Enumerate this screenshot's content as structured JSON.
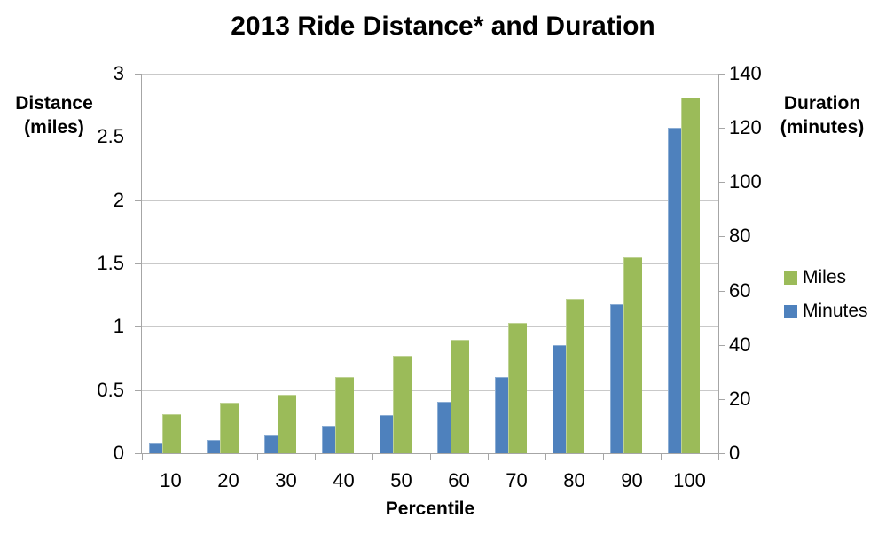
{
  "title": "2013 Ride Distance* and Duration",
  "colors": {
    "miles_green": "#9BBB59",
    "minutes_blue": "#4E81BD",
    "gridline": "#C9C9C9",
    "axis_line": "#A6A6A6",
    "text": "#000000",
    "background": "#FFFFFF"
  },
  "chart_data": {
    "type": "bar",
    "title": "2013 Ride Distance* and Duration",
    "xlabel": "Percentile",
    "grid": true,
    "legend_position": "right",
    "categories": [
      "10",
      "20",
      "30",
      "40",
      "50",
      "60",
      "70",
      "80",
      "90",
      "100"
    ],
    "series": [
      {
        "name": "Miles",
        "axis": "left",
        "color": "#9BBB59",
        "values": [
          0.31,
          0.4,
          0.46,
          0.6,
          0.77,
          0.9,
          1.03,
          1.22,
          1.55,
          2.81
        ]
      },
      {
        "name": "Minutes",
        "axis": "right",
        "color": "#4E81BD",
        "values": [
          4,
          5,
          7,
          10,
          14,
          19,
          28,
          40,
          55,
          120
        ]
      }
    ],
    "left_axis": {
      "title_lines": [
        "Distance",
        "(miles)"
      ],
      "min": 0,
      "max": 3,
      "tick_step": 0.5,
      "tick_labels": [
        "3",
        "2.5",
        "2",
        "1.5",
        "1",
        "0.5",
        "0"
      ]
    },
    "right_axis": {
      "title_lines": [
        "Duration",
        "(minutes)"
      ],
      "min": 0,
      "max": 140,
      "tick_step": 20,
      "tick_labels": [
        "140",
        "120",
        "100",
        "80",
        "60",
        "40",
        "20",
        "0"
      ]
    },
    "legend": [
      {
        "label": "Miles",
        "color": "#9BBB59"
      },
      {
        "label": "Minutes",
        "color": "#4E81BD"
      }
    ]
  }
}
